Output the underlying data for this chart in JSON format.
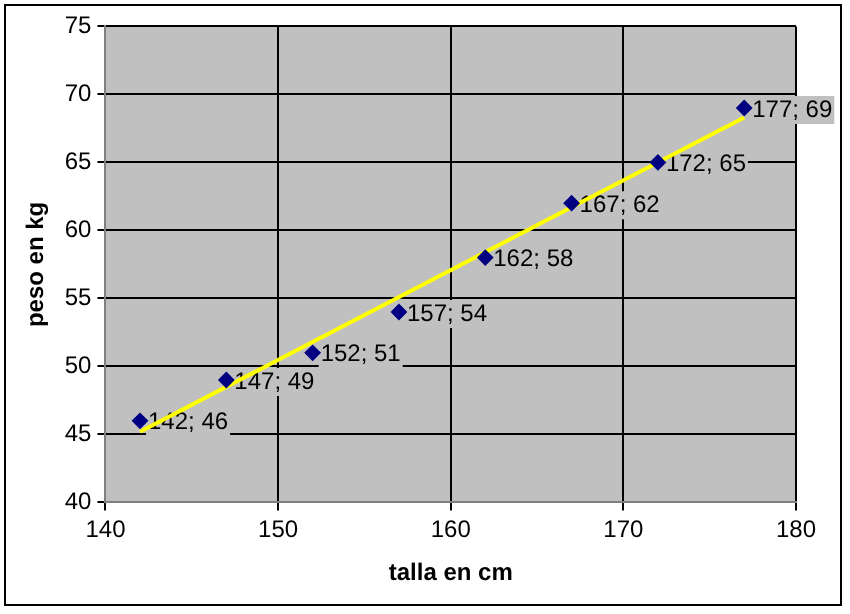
{
  "chart_data": {
    "type": "scatter",
    "xlabel": "talla en cm",
    "ylabel": "peso en kg",
    "xlim": [
      140,
      180
    ],
    "xticks": [
      140,
      150,
      160,
      170,
      180
    ],
    "ylim": [
      40,
      75
    ],
    "yticks": [
      40,
      45,
      50,
      55,
      60,
      65,
      70,
      75
    ],
    "grid": true,
    "marker": "diamond",
    "series": [
      {
        "color": "#000080",
        "x": [
          142,
          147,
          152,
          157,
          162,
          167,
          172,
          177
        ],
        "values": [
          46,
          49,
          51,
          54,
          58,
          62,
          65,
          69
        ],
        "value_labels": [
          "142; 46",
          "147; 49",
          "152; 51",
          "157; 54",
          "162; 58",
          "167; 62",
          "172; 65",
          "177; 69"
        ]
      },
      {
        "type": "line",
        "color": "#ffff00",
        "marker": "none",
        "x": [
          142,
          177
        ],
        "values": [
          45.2,
          68.3
        ]
      }
    ]
  }
}
